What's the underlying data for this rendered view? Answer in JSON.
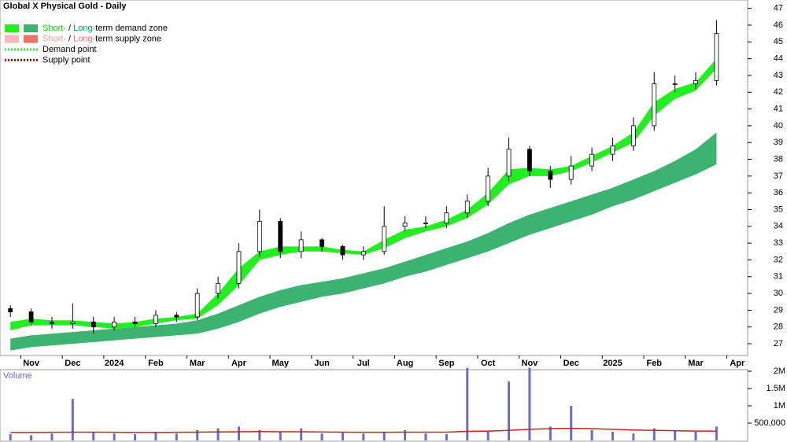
{
  "chart_data": [
    {
      "type": "candlestick",
      "title": "Global X Physical Gold - Daily",
      "categories": [
        null,
        "Nov",
        null,
        "Dec",
        null,
        "2024",
        null,
        "Feb",
        null,
        "Mar",
        null,
        "Apr",
        null,
        "May",
        null,
        "Jun",
        null,
        "Jul",
        null,
        "Aug",
        null,
        "Sep",
        null,
        "Oct",
        null,
        "Nov",
        null,
        "Dec",
        null,
        "2025",
        null,
        "Feb",
        null,
        "Mar",
        null,
        "Apr"
      ],
      "open": [
        29.1,
        28.9,
        28.3,
        28.2,
        28.3,
        28.0,
        28.3,
        28.2,
        28.7,
        28.6,
        30.0,
        30.6,
        32.5,
        34.3,
        32.5,
        33.2,
        32.8,
        32.3,
        32.5,
        34.0,
        34.2,
        34.2,
        34.8,
        35.5,
        37.0,
        38.6,
        37.3,
        36.8,
        37.6,
        38.3,
        38.8,
        40.0,
        42.5,
        42.5,
        42.7,
        null
      ],
      "high": [
        29.3,
        29.1,
        28.6,
        29.4,
        28.6,
        28.6,
        28.6,
        29.0,
        28.9,
        30.3,
        31.0,
        33.0,
        35.0,
        34.5,
        33.7,
        33.3,
        32.9,
        32.8,
        35.2,
        34.6,
        34.6,
        35.2,
        35.9,
        37.5,
        39.3,
        38.8,
        37.6,
        38.2,
        38.7,
        39.3,
        40.5,
        43.2,
        43.0,
        43.2,
        46.3,
        null
      ],
      "low": [
        28.6,
        28.1,
        27.9,
        27.9,
        27.6,
        27.8,
        28.0,
        28.0,
        28.3,
        28.4,
        29.7,
        30.3,
        32.2,
        32.1,
        32.1,
        32.5,
        32.0,
        32.0,
        32.3,
        33.7,
        33.9,
        33.9,
        34.5,
        35.2,
        36.7,
        37.0,
        36.3,
        36.5,
        37.3,
        37.9,
        38.5,
        39.7,
        42.0,
        42.2,
        42.4,
        null
      ],
      "close": [
        28.9,
        28.3,
        28.2,
        28.3,
        28.0,
        28.3,
        28.2,
        28.7,
        28.6,
        30.0,
        30.6,
        32.5,
        34.3,
        32.5,
        33.2,
        32.8,
        32.3,
        32.5,
        34.0,
        34.2,
        34.2,
        34.8,
        35.5,
        37.0,
        38.6,
        37.3,
        36.8,
        37.6,
        38.3,
        38.8,
        40.0,
        42.5,
        42.5,
        42.7,
        45.5,
        null
      ],
      "zones": [
        {
          "color": "#3cb371",
          "upper": [
            27.3,
            27.5,
            27.6,
            27.7,
            27.8,
            27.9,
            28.0,
            28.1,
            28.2,
            28.4,
            28.8,
            29.3,
            29.8,
            30.2,
            30.5,
            30.7,
            30.9,
            31.2,
            31.5,
            31.9,
            32.3,
            32.7,
            33.1,
            33.6,
            34.2,
            34.7,
            35.1,
            35.5,
            35.9,
            36.3,
            36.8,
            37.3,
            37.9,
            38.6,
            39.6,
            null
          ],
          "lower": [
            26.6,
            26.8,
            26.9,
            27.0,
            27.1,
            27.2,
            27.3,
            27.4,
            27.5,
            27.6,
            27.9,
            28.3,
            28.8,
            29.2,
            29.5,
            29.8,
            30.0,
            30.3,
            30.6,
            31.0,
            31.3,
            31.7,
            32.1,
            32.5,
            33.0,
            33.5,
            33.9,
            34.3,
            34.7,
            35.2,
            35.6,
            36.1,
            36.6,
            37.1,
            37.7,
            null
          ]
        },
        {
          "color": "#22ee22",
          "upper": [
            28.3,
            28.5,
            28.4,
            28.4,
            28.3,
            28.2,
            28.3,
            28.5,
            28.6,
            28.8,
            30.0,
            31.5,
            32.5,
            32.8,
            32.8,
            32.8,
            32.6,
            32.5,
            33.2,
            33.8,
            34.0,
            34.4,
            35.0,
            36.0,
            37.4,
            37.5,
            37.4,
            37.6,
            38.2,
            38.8,
            39.6,
            41.4,
            42.2,
            42.6,
            44.0,
            null
          ],
          "lower": [
            27.8,
            28.1,
            28.1,
            28.1,
            28.0,
            27.9,
            28.0,
            28.2,
            28.4,
            28.5,
            29.3,
            30.5,
            32.0,
            32.3,
            32.5,
            32.5,
            32.4,
            32.3,
            32.7,
            33.3,
            33.7,
            34.0,
            34.5,
            35.3,
            36.5,
            37.0,
            37.0,
            37.3,
            37.8,
            38.4,
            39.0,
            40.6,
            41.6,
            42.1,
            43.4,
            null
          ]
        }
      ],
      "ylim": [
        26.3,
        47.5
      ],
      "yticks": [
        27,
        28,
        29,
        30,
        31,
        32,
        33,
        34,
        35,
        36,
        37,
        38,
        39,
        40,
        41,
        42,
        43,
        44,
        45,
        46,
        47
      ],
      "legend": [
        {
          "style": "box",
          "swatches": [
            "#22ee22",
            "#3cb371"
          ],
          "parts": [
            "Short-",
            " / ",
            "Long-",
            "term demand zone"
          ],
          "part_colors": [
            "#00dd00",
            "#000000",
            "#00aa44",
            "#000000"
          ]
        },
        {
          "style": "box",
          "swatches": [
            "#f8b8b8",
            "#f07070"
          ],
          "parts": [
            "Short-",
            " / ",
            "Long-",
            "term supply zone"
          ],
          "part_colors": [
            "#f0a0a0",
            "#000000",
            "#f07070",
            "#000000"
          ]
        },
        {
          "style": "dotted",
          "swatches": [
            "#22ee22"
          ],
          "parts": [
            "Demand point"
          ],
          "part_colors": [
            "#000000"
          ]
        },
        {
          "style": "dotted",
          "swatches": [
            "#dd0000"
          ],
          "parts": [
            "Supply point"
          ],
          "part_colors": [
            "#000000"
          ]
        }
      ]
    },
    {
      "type": "bar",
      "title": "Volume",
      "color": "#6a6acf",
      "average_color": "#cc2222",
      "values": [
        180000,
        150000,
        200000,
        1200000,
        250000,
        200000,
        180000,
        220000,
        200000,
        300000,
        350000,
        400000,
        300000,
        250000,
        350000,
        200000,
        220000,
        200000,
        250000,
        300000,
        200000,
        180000,
        2100000,
        250000,
        1700000,
        2100000,
        400000,
        1000000,
        300000,
        250000,
        200000,
        350000,
        300000,
        250000,
        400000,
        null
      ],
      "average": [
        230000,
        230000,
        235000,
        240000,
        240000,
        235000,
        230000,
        230000,
        235000,
        240000,
        245000,
        250000,
        255000,
        250000,
        250000,
        245000,
        240000,
        235000,
        235000,
        240000,
        240000,
        240000,
        260000,
        270000,
        290000,
        320000,
        340000,
        350000,
        340000,
        320000,
        300000,
        290000,
        280000,
        270000,
        270000,
        null
      ],
      "ylim": [
        0,
        2000000
      ],
      "yticks": [
        {
          "value": 500000,
          "label": "500,000"
        },
        {
          "value": 1000000,
          "label": "1M"
        },
        {
          "value": 1500000,
          "label": "1.5M"
        },
        {
          "value": 2000000,
          "label": "2M"
        }
      ]
    }
  ]
}
